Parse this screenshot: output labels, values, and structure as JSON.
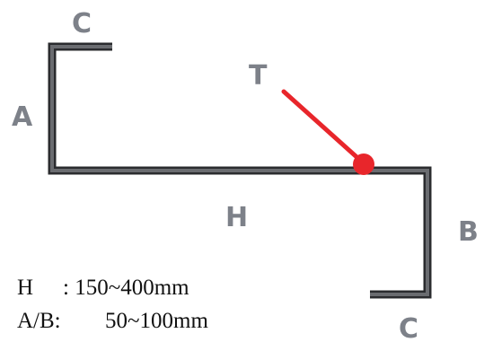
{
  "diagram": {
    "labels": {
      "c_top": "C",
      "a": "A",
      "t": "T",
      "h": "H",
      "b": "B",
      "c_bottom": "C"
    },
    "specs": [
      {
        "key": "H",
        "value": ": 150~400mm"
      },
      {
        "key": "A/B:",
        "value": "50~100mm"
      }
    ],
    "colors": {
      "profile_fill": "#5b5d61",
      "profile_edge": "#2a2b2e",
      "pointer": "#e8262b",
      "label": "#7d8189",
      "text": "#111111"
    }
  }
}
